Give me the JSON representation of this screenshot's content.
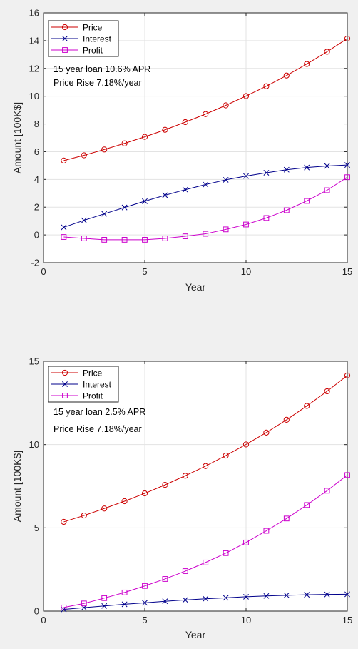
{
  "chart_data": [
    {
      "type": "line",
      "title": "",
      "xlabel": "Year",
      "ylabel": "Amount [100K$]",
      "xlim": [
        0,
        15
      ],
      "ylim": [
        -2,
        16
      ],
      "xticks": [
        0,
        5,
        10,
        15
      ],
      "yticks": [
        -2,
        0,
        2,
        4,
        6,
        8,
        10,
        12,
        14,
        16
      ],
      "grid": true,
      "legend_position": "top-left",
      "annotations": [
        "15 year loan 10.6% APR",
        "Price Rise  7.18%/year"
      ],
      "x": [
        1,
        2,
        3,
        4,
        5,
        6,
        7,
        8,
        9,
        10,
        11,
        12,
        13,
        14,
        15
      ],
      "series": [
        {
          "name": "Price",
          "color": "#cc0000",
          "marker": "circle",
          "values": [
            5.36,
            5.74,
            6.16,
            6.6,
            7.07,
            7.58,
            8.13,
            8.71,
            9.34,
            10.01,
            10.72,
            11.49,
            12.32,
            13.2,
            14.15
          ]
        },
        {
          "name": "Interest",
          "color": "#00008b",
          "marker": "x",
          "values": [
            0.55,
            1.05,
            1.52,
            1.98,
            2.43,
            2.86,
            3.26,
            3.63,
            3.97,
            4.24,
            4.48,
            4.7,
            4.86,
            4.97,
            5.04
          ]
        },
        {
          "name": "Profit",
          "color": "#cc00cc",
          "marker": "square",
          "values": [
            -0.15,
            -0.25,
            -0.35,
            -0.35,
            -0.35,
            -0.25,
            -0.1,
            0.08,
            0.4,
            0.75,
            1.22,
            1.78,
            2.45,
            3.22,
            4.16
          ]
        }
      ]
    },
    {
      "type": "line",
      "title": "",
      "xlabel": "Year",
      "ylabel": "Amount [100K$]",
      "xlim": [
        0,
        15
      ],
      "ylim": [
        0,
        15
      ],
      "xticks": [
        0,
        5,
        10,
        15
      ],
      "yticks": [
        0,
        5,
        10,
        15
      ],
      "grid": true,
      "legend_position": "top-left",
      "annotations": [
        "15 year loan 2.5% APR",
        "Price Rise  7.18%/year"
      ],
      "x": [
        1,
        2,
        3,
        4,
        5,
        6,
        7,
        8,
        9,
        10,
        11,
        12,
        13,
        14,
        15
      ],
      "series": [
        {
          "name": "Price",
          "color": "#cc0000",
          "marker": "circle",
          "values": [
            5.36,
            5.74,
            6.16,
            6.6,
            7.07,
            7.58,
            8.13,
            8.71,
            9.34,
            10.01,
            10.72,
            11.49,
            12.32,
            13.2,
            14.15
          ]
        },
        {
          "name": "Interest",
          "color": "#00008b",
          "marker": "x",
          "values": [
            0.1,
            0.21,
            0.31,
            0.41,
            0.5,
            0.59,
            0.67,
            0.74,
            0.8,
            0.86,
            0.91,
            0.95,
            0.98,
            1.0,
            1.01
          ]
        },
        {
          "name": "Profit",
          "color": "#cc00cc",
          "marker": "square",
          "values": [
            0.22,
            0.46,
            0.78,
            1.12,
            1.51,
            1.93,
            2.4,
            2.92,
            3.48,
            4.12,
            4.82,
            5.56,
            6.37,
            7.23,
            8.17
          ]
        }
      ]
    }
  ]
}
